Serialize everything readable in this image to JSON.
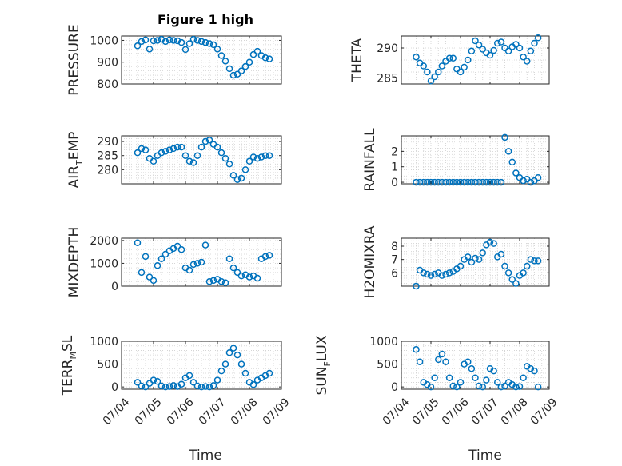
{
  "figure": {
    "title": "Figure 1 high",
    "xlabel": "Time",
    "colors": {
      "marker": "#0072BD",
      "axis": "#262626",
      "grid": "#CFCFCF"
    }
  },
  "chart_data": [
    {
      "type": "scatter",
      "id": "pressure",
      "ylabel": {
        "main": "PRESSURE",
        "sub": "",
        "tail": ""
      },
      "ylim": [
        800,
        1020
      ],
      "yticks": [
        800,
        900,
        1000
      ],
      "xlim": [
        "07/04",
        "07/09"
      ],
      "xticks": [
        "07/04",
        "07/05",
        "07/06",
        "07/07",
        "07/08",
        "07/09"
      ],
      "grid": true,
      "marker": "open-circle",
      "x": [
        "07/04 12:00",
        "07/04 15:00",
        "07/04 18:00",
        "07/04 21:00",
        "07/05 00:00",
        "07/05 03:00",
        "07/05 06:00",
        "07/05 09:00",
        "07/05 12:00",
        "07/05 15:00",
        "07/05 18:00",
        "07/05 21:00",
        "07/06 00:00",
        "07/06 03:00",
        "07/06 06:00",
        "07/06 09:00",
        "07/06 12:00",
        "07/06 15:00",
        "07/06 18:00",
        "07/06 21:00",
        "07/07 00:00",
        "07/07 03:00",
        "07/07 06:00",
        "07/07 09:00",
        "07/07 12:00",
        "07/07 15:00",
        "07/07 18:00",
        "07/07 21:00",
        "07/08 00:00",
        "07/08 03:00",
        "07/08 06:00",
        "07/08 09:00",
        "07/08 12:00",
        "07/08 15:00"
      ],
      "y": [
        975,
        995,
        1002,
        960,
        998,
        1000,
        1005,
        995,
        1002,
        1000,
        998,
        990,
        958,
        985,
        1005,
        1000,
        995,
        990,
        985,
        980,
        960,
        930,
        905,
        870,
        840,
        845,
        860,
        880,
        900,
        935,
        950,
        930,
        920,
        915
      ]
    },
    {
      "type": "scatter",
      "id": "theta",
      "ylabel": {
        "main": "THETA",
        "sub": "",
        "tail": ""
      },
      "ylim": [
        284,
        292
      ],
      "yticks": [
        285,
        290
      ],
      "xlim": [
        "07/04",
        "07/09"
      ],
      "xticks": [
        "07/04",
        "07/05",
        "07/06",
        "07/07",
        "07/08",
        "07/09"
      ],
      "grid": true,
      "marker": "open-circle",
      "x": [
        "07/04 12:00",
        "07/04 15:00",
        "07/04 18:00",
        "07/04 21:00",
        "07/05 00:00",
        "07/05 03:00",
        "07/05 06:00",
        "07/05 09:00",
        "07/05 12:00",
        "07/05 15:00",
        "07/05 18:00",
        "07/05 21:00",
        "07/06 00:00",
        "07/06 03:00",
        "07/06 06:00",
        "07/06 09:00",
        "07/06 12:00",
        "07/06 15:00",
        "07/06 18:00",
        "07/06 21:00",
        "07/07 00:00",
        "07/07 03:00",
        "07/07 06:00",
        "07/07 09:00",
        "07/07 12:00",
        "07/07 15:00",
        "07/07 18:00",
        "07/07 21:00",
        "07/08 00:00",
        "07/08 03:00",
        "07/08 06:00",
        "07/08 09:00",
        "07/08 12:00",
        "07/08 15:00"
      ],
      "y": [
        288.5,
        287.5,
        287,
        286,
        284.5,
        285.2,
        286,
        287,
        287.8,
        288.3,
        288.3,
        286.5,
        286,
        286.8,
        288,
        289.5,
        291.2,
        290.5,
        289.8,
        289.2,
        288.8,
        289.6,
        290.8,
        291,
        290,
        289.5,
        290.2,
        290.6,
        290,
        288.5,
        287.8,
        289.5,
        290.8,
        291.7
      ]
    },
    {
      "type": "scatter",
      "id": "air_temp",
      "ylabel": {
        "main": "AIR",
        "sub": "T",
        "tail": "EMP"
      },
      "ylim": [
        275,
        292
      ],
      "yticks": [
        280,
        285,
        290
      ],
      "xlim": [
        "07/04",
        "07/09"
      ],
      "xticks": [
        "07/04",
        "07/05",
        "07/06",
        "07/07",
        "07/08",
        "07/09"
      ],
      "grid": true,
      "marker": "open-circle",
      "x": [
        "07/04 12:00",
        "07/04 15:00",
        "07/04 18:00",
        "07/04 21:00",
        "07/05 00:00",
        "07/05 03:00",
        "07/05 06:00",
        "07/05 09:00",
        "07/05 12:00",
        "07/05 15:00",
        "07/05 18:00",
        "07/05 21:00",
        "07/06 00:00",
        "07/06 03:00",
        "07/06 06:00",
        "07/06 09:00",
        "07/06 12:00",
        "07/06 15:00",
        "07/06 18:00",
        "07/06 21:00",
        "07/07 00:00",
        "07/07 03:00",
        "07/07 06:00",
        "07/07 09:00",
        "07/07 12:00",
        "07/07 15:00",
        "07/07 18:00",
        "07/07 21:00",
        "07/08 00:00",
        "07/08 03:00",
        "07/08 06:00",
        "07/08 09:00",
        "07/08 12:00",
        "07/08 15:00"
      ],
      "y": [
        286,
        287.5,
        287,
        284,
        283,
        285,
        286,
        286.5,
        287,
        287.5,
        288,
        288,
        285,
        283,
        282.5,
        285,
        288,
        290,
        290.5,
        289,
        288,
        286,
        284,
        282,
        278,
        276.5,
        277,
        280,
        283,
        284.5,
        284,
        284.5,
        285,
        285
      ]
    },
    {
      "type": "scatter",
      "id": "rainfall",
      "ylabel": {
        "main": "RAINFALL",
        "sub": "",
        "tail": ""
      },
      "ylim": [
        -0.1,
        3
      ],
      "yticks": [
        0,
        1,
        2
      ],
      "xlim": [
        "07/04",
        "07/09"
      ],
      "xticks": [
        "07/04",
        "07/05",
        "07/06",
        "07/07",
        "07/08",
        "07/09"
      ],
      "grid": true,
      "marker": "open-circle",
      "x": [
        "07/04 12:00",
        "07/04 15:00",
        "07/04 18:00",
        "07/04 21:00",
        "07/05 00:00",
        "07/05 03:00",
        "07/05 06:00",
        "07/05 09:00",
        "07/05 12:00",
        "07/05 15:00",
        "07/05 18:00",
        "07/05 21:00",
        "07/06 00:00",
        "07/06 03:00",
        "07/06 06:00",
        "07/06 09:00",
        "07/06 12:00",
        "07/06 15:00",
        "07/06 18:00",
        "07/06 21:00",
        "07/07 00:00",
        "07/07 03:00",
        "07/07 06:00",
        "07/07 09:00",
        "07/07 12:00",
        "07/07 15:00",
        "07/07 18:00",
        "07/07 21:00",
        "07/08 00:00",
        "07/08 03:00",
        "07/08 06:00",
        "07/08 09:00",
        "07/08 12:00",
        "07/08 15:00"
      ],
      "y": [
        0,
        0,
        0,
        0,
        0,
        0,
        0,
        0,
        0,
        0,
        0,
        0,
        0,
        0,
        0,
        0,
        0,
        0,
        0,
        0,
        0,
        0,
        0,
        0,
        2.9,
        2.0,
        1.3,
        0.6,
        0.3,
        0.1,
        0.2,
        0,
        0.1,
        0.3
      ]
    },
    {
      "type": "scatter",
      "id": "mixdepth",
      "ylabel": {
        "main": "MIXDEPTH",
        "sub": "",
        "tail": ""
      },
      "ylim": [
        0,
        2100
      ],
      "yticks": [
        0,
        1000,
        2000
      ],
      "xlim": [
        "07/04",
        "07/09"
      ],
      "xticks": [
        "07/04",
        "07/05",
        "07/06",
        "07/07",
        "07/08",
        "07/09"
      ],
      "grid": true,
      "marker": "open-circle",
      "x": [
        "07/04 12:00",
        "07/04 15:00",
        "07/04 18:00",
        "07/04 21:00",
        "07/05 00:00",
        "07/05 03:00",
        "07/05 06:00",
        "07/05 09:00",
        "07/05 12:00",
        "07/05 15:00",
        "07/05 18:00",
        "07/05 21:00",
        "07/06 00:00",
        "07/06 03:00",
        "07/06 06:00",
        "07/06 09:00",
        "07/06 12:00",
        "07/06 15:00",
        "07/06 18:00",
        "07/06 21:00",
        "07/07 00:00",
        "07/07 03:00",
        "07/07 06:00",
        "07/07 09:00",
        "07/07 12:00",
        "07/07 15:00",
        "07/07 18:00",
        "07/07 21:00",
        "07/08 00:00",
        "07/08 03:00",
        "07/08 06:00",
        "07/08 09:00",
        "07/08 12:00",
        "07/08 15:00"
      ],
      "y": [
        1900,
        600,
        1300,
        400,
        250,
        900,
        1200,
        1400,
        1550,
        1650,
        1750,
        1600,
        800,
        700,
        950,
        1000,
        1050,
        1800,
        200,
        250,
        300,
        200,
        150,
        1200,
        800,
        600,
        450,
        500,
        400,
        450,
        350,
        1200,
        1300,
        1350
      ]
    },
    {
      "type": "scatter",
      "id": "h2omixra",
      "ylabel": {
        "main": "H2OMIXRA",
        "sub": "",
        "tail": ""
      },
      "ylim": [
        5,
        8.6
      ],
      "yticks": [
        6,
        7,
        8
      ],
      "xlim": [
        "07/04",
        "07/09"
      ],
      "xticks": [
        "07/04",
        "07/05",
        "07/06",
        "07/07",
        "07/08",
        "07/09"
      ],
      "grid": true,
      "marker": "open-circle",
      "x": [
        "07/04 12:00",
        "07/04 15:00",
        "07/04 18:00",
        "07/04 21:00",
        "07/05 00:00",
        "07/05 03:00",
        "07/05 06:00",
        "07/05 09:00",
        "07/05 12:00",
        "07/05 15:00",
        "07/05 18:00",
        "07/05 21:00",
        "07/06 00:00",
        "07/06 03:00",
        "07/06 06:00",
        "07/06 09:00",
        "07/06 12:00",
        "07/06 15:00",
        "07/06 18:00",
        "07/06 21:00",
        "07/07 00:00",
        "07/07 03:00",
        "07/07 06:00",
        "07/07 09:00",
        "07/07 12:00",
        "07/07 15:00",
        "07/07 18:00",
        "07/07 21:00",
        "07/08 00:00",
        "07/08 03:00",
        "07/08 06:00",
        "07/08 09:00",
        "07/08 12:00",
        "07/08 15:00"
      ],
      "y": [
        5.0,
        6.2,
        6.0,
        5.9,
        5.8,
        5.9,
        6.0,
        5.8,
        5.9,
        6.0,
        6.1,
        6.3,
        6.5,
        7.0,
        7.2,
        6.8,
        7.1,
        7.0,
        7.5,
        8.1,
        8.3,
        8.2,
        7.2,
        7.4,
        6.5,
        6.0,
        5.5,
        5.2,
        5.8,
        6.0,
        6.5,
        7.0,
        6.9,
        6.9
      ]
    },
    {
      "type": "scatter",
      "id": "terr_msl",
      "ylabel": {
        "main": "TERR",
        "sub": "M",
        "tail": "SL"
      },
      "ylim": [
        -50,
        1000
      ],
      "yticks": [
        0,
        500,
        1000
      ],
      "xlim": [
        "07/04",
        "07/09"
      ],
      "xticks": [
        "07/04",
        "07/05",
        "07/06",
        "07/07",
        "07/08",
        "07/09"
      ],
      "grid": true,
      "marker": "open-circle",
      "x": [
        "07/04 12:00",
        "07/04 15:00",
        "07/04 18:00",
        "07/04 21:00",
        "07/05 00:00",
        "07/05 03:00",
        "07/05 06:00",
        "07/05 09:00",
        "07/05 12:00",
        "07/05 15:00",
        "07/05 18:00",
        "07/05 21:00",
        "07/06 00:00",
        "07/06 03:00",
        "07/06 06:00",
        "07/06 09:00",
        "07/06 12:00",
        "07/06 15:00",
        "07/06 18:00",
        "07/06 21:00",
        "07/07 00:00",
        "07/07 03:00",
        "07/07 06:00",
        "07/07 09:00",
        "07/07 12:00",
        "07/07 15:00",
        "07/07 18:00",
        "07/07 21:00",
        "07/08 00:00",
        "07/08 03:00",
        "07/08 06:00",
        "07/08 09:00",
        "07/08 12:00",
        "07/08 15:00"
      ],
      "y": [
        100,
        20,
        0,
        80,
        150,
        120,
        20,
        0,
        10,
        30,
        10,
        60,
        200,
        250,
        100,
        20,
        0,
        10,
        0,
        30,
        150,
        350,
        500,
        750,
        850,
        700,
        500,
        300,
        100,
        50,
        150,
        200,
        250,
        300
      ]
    },
    {
      "type": "scatter",
      "id": "sun_flux",
      "ylabel": {
        "main": "SUN",
        "sub": "F",
        "tail": "LUX"
      },
      "ylim": [
        -50,
        1000
      ],
      "yticks": [
        0,
        500,
        1000
      ],
      "xlim": [
        "07/04",
        "07/09"
      ],
      "xticks": [
        "07/04",
        "07/05",
        "07/06",
        "07/07",
        "07/08",
        "07/09"
      ],
      "grid": true,
      "marker": "open-circle",
      "x": [
        "07/04 12:00",
        "07/04 15:00",
        "07/04 18:00",
        "07/04 21:00",
        "07/05 00:00",
        "07/05 03:00",
        "07/05 06:00",
        "07/05 09:00",
        "07/05 12:00",
        "07/05 15:00",
        "07/05 18:00",
        "07/05 21:00",
        "07/06 00:00",
        "07/06 03:00",
        "07/06 06:00",
        "07/06 09:00",
        "07/06 12:00",
        "07/06 15:00",
        "07/06 18:00",
        "07/06 21:00",
        "07/07 00:00",
        "07/07 03:00",
        "07/07 06:00",
        "07/07 09:00",
        "07/07 12:00",
        "07/07 15:00",
        "07/07 18:00",
        "07/07 21:00",
        "07/08 00:00",
        "07/08 03:00",
        "07/08 06:00",
        "07/08 09:00",
        "07/08 12:00",
        "07/08 15:00"
      ],
      "y": [
        820,
        550,
        100,
        50,
        0,
        200,
        600,
        720,
        550,
        200,
        20,
        0,
        100,
        500,
        550,
        400,
        200,
        20,
        0,
        150,
        400,
        350,
        100,
        0,
        20,
        100,
        50,
        0,
        10,
        200,
        450,
        400,
        350,
        0
      ]
    }
  ]
}
